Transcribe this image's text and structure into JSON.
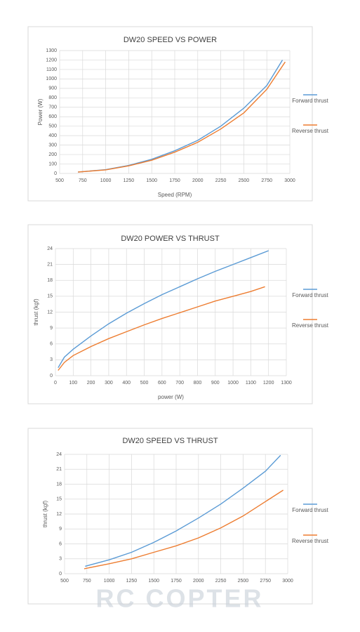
{
  "chart_data": [
    {
      "type": "line",
      "title": "DW20 SPEED VS POWER",
      "x_label": "Speed (RPM)",
      "y_label": "Power (W)",
      "xlim": [
        500,
        3000
      ],
      "xticks": [
        500,
        750,
        1000,
        1250,
        1500,
        1750,
        2000,
        2250,
        2500,
        2750,
        3000
      ],
      "ylim": [
        0,
        1300
      ],
      "yticks": [
        0,
        100,
        200,
        300,
        400,
        500,
        600,
        700,
        800,
        900,
        1000,
        1100,
        1200,
        1300
      ],
      "grid": true,
      "legend": "right",
      "series": [
        {
          "name": "Forward thrust",
          "color": "#5b9bd5",
          "x": [
            700,
            1000,
            1250,
            1500,
            1750,
            2000,
            2250,
            2500,
            2750,
            2920
          ],
          "values": [
            15,
            40,
            85,
            150,
            240,
            350,
            500,
            690,
            930,
            1200
          ]
        },
        {
          "name": "Reverse thrust",
          "color": "#ed7d31",
          "x": [
            700,
            1000,
            1250,
            1500,
            1750,
            2000,
            2250,
            2500,
            2750,
            2950
          ],
          "values": [
            15,
            38,
            80,
            140,
            225,
            330,
            470,
            640,
            890,
            1180
          ]
        }
      ]
    },
    {
      "type": "line",
      "title": "DW20 POWER VS THRUST",
      "x_label": "power (W)",
      "y_label": "thrust (kgf)",
      "xlim": [
        0,
        1300
      ],
      "xticks": [
        0,
        100,
        200,
        300,
        400,
        500,
        600,
        700,
        800,
        900,
        1000,
        1100,
        1200,
        1300
      ],
      "ylim": [
        0,
        24
      ],
      "yticks": [
        0,
        3,
        6,
        9,
        12,
        15,
        18,
        21,
        24
      ],
      "grid": true,
      "legend": "right",
      "series": [
        {
          "name": "Forward thrust",
          "color": "#5b9bd5",
          "x": [
            15,
            50,
            100,
            200,
            300,
            400,
            500,
            600,
            700,
            800,
            900,
            1000,
            1100,
            1200
          ],
          "values": [
            1.5,
            3.5,
            5,
            7.5,
            9.8,
            11.8,
            13.6,
            15.3,
            16.8,
            18.3,
            19.7,
            21,
            22.3,
            23.6
          ]
        },
        {
          "name": "Reverse thrust",
          "color": "#ed7d31",
          "x": [
            15,
            50,
            100,
            200,
            300,
            400,
            500,
            600,
            700,
            800,
            900,
            1000,
            1100,
            1180
          ],
          "values": [
            1,
            2.5,
            3.8,
            5.5,
            7,
            8.3,
            9.6,
            10.8,
            11.9,
            13,
            14.1,
            15,
            15.9,
            16.8
          ]
        }
      ]
    },
    {
      "type": "line",
      "title": "DW20 SPEED VS THRUST",
      "y_label": "thrust (kgf)",
      "xlim": [
        500,
        3000
      ],
      "xticks": [
        500,
        750,
        1000,
        1250,
        1500,
        1750,
        2000,
        2250,
        2500,
        2750,
        3000
      ],
      "ylim": [
        0,
        24
      ],
      "yticks": [
        0,
        3,
        6,
        9,
        12,
        15,
        18,
        21,
        24
      ],
      "grid": true,
      "legend": "right",
      "series": [
        {
          "name": "Forward thrust",
          "color": "#5b9bd5",
          "x": [
            730,
            1000,
            1250,
            1500,
            1750,
            2000,
            2250,
            2500,
            2750,
            2920
          ],
          "values": [
            1.5,
            2.8,
            4.3,
            6.3,
            8.6,
            11.2,
            14,
            17.2,
            20.6,
            23.8
          ]
        },
        {
          "name": "Reverse thrust",
          "color": "#ed7d31",
          "x": [
            720,
            1000,
            1250,
            1500,
            1750,
            2000,
            2250,
            2500,
            2750,
            2950
          ],
          "values": [
            1,
            2,
            3,
            4.3,
            5.6,
            7.2,
            9.2,
            11.6,
            14.5,
            16.8
          ]
        }
      ]
    }
  ],
  "watermark": "RC COPTER"
}
